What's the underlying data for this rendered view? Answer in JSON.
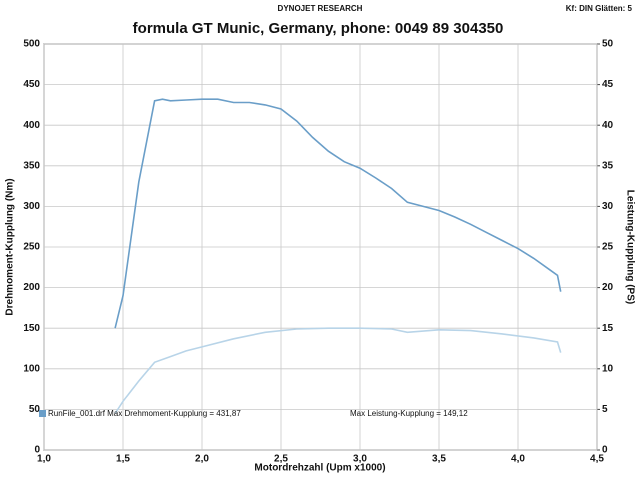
{
  "chart_data": {
    "type": "line",
    "header": "DYNOJET RESEARCH",
    "corner_note": "Kf: DIN  Glätten: 5",
    "title": "formula GT  Munic, Germany, phone: 0049 89 304350",
    "x_label": "Motordrehzahl (Upm x1000)",
    "y_label": "Drehmoment-Kupplung (Nm)",
    "y2_label": "Leistung-Kupplung (PS)",
    "xlim": [
      1.0,
      4.5
    ],
    "xticks": [
      {
        "value": 1.0,
        "label": "1,0"
      },
      {
        "value": 1.5,
        "label": "1,5"
      },
      {
        "value": 2.0,
        "label": "2,0"
      },
      {
        "value": 2.5,
        "label": "2,5"
      },
      {
        "value": 3.0,
        "label": "3,0"
      },
      {
        "value": 3.5,
        "label": "3,5"
      },
      {
        "value": 4.0,
        "label": "4,0"
      },
      {
        "value": 4.5,
        "label": "4,5"
      }
    ],
    "ylim": [
      0,
      500
    ],
    "yticks": [
      0,
      50,
      100,
      150,
      200,
      250,
      300,
      350,
      400,
      450,
      500
    ],
    "y2lim": [
      0,
      50
    ],
    "y2ticks": [
      0,
      5,
      10,
      15,
      20,
      25,
      30,
      35,
      40,
      45,
      50
    ],
    "grid": true,
    "series": [
      {
        "name": "RunFile_001.drf Max Drehmoment-Kupplung = 431,87",
        "color": "#6a9ec8",
        "x": [
          1.45,
          1.5,
          1.6,
          1.7,
          1.75,
          1.8,
          1.9,
          2.0,
          2.1,
          2.2,
          2.3,
          2.4,
          2.5,
          2.6,
          2.7,
          2.8,
          2.9,
          3.0,
          3.1,
          3.2,
          3.3,
          3.4,
          3.5,
          3.6,
          3.7,
          3.8,
          3.9,
          4.0,
          4.1,
          4.2,
          4.25,
          4.27
        ],
        "values": [
          150,
          190,
          330,
          430,
          432,
          430,
          431,
          432,
          432,
          428,
          428,
          425,
          420,
          405,
          385,
          368,
          355,
          347,
          335,
          322,
          305,
          300,
          295,
          287,
          278,
          268,
          258,
          248,
          236,
          222,
          215,
          195
        ]
      },
      {
        "name": "Max Leistung-Kupplung = 149,12",
        "color": "#b8d4e8",
        "x": [
          1.45,
          1.5,
          1.6,
          1.7,
          1.8,
          1.9,
          2.0,
          2.2,
          2.4,
          2.6,
          2.8,
          3.0,
          3.2,
          3.3,
          3.5,
          3.7,
          3.9,
          4.1,
          4.25,
          4.27
        ],
        "values": [
          45,
          60,
          85,
          108,
          115,
          122,
          127,
          137,
          145,
          149,
          150,
          150,
          149,
          145,
          148,
          147,
          143,
          138,
          133,
          120
        ]
      }
    ]
  }
}
